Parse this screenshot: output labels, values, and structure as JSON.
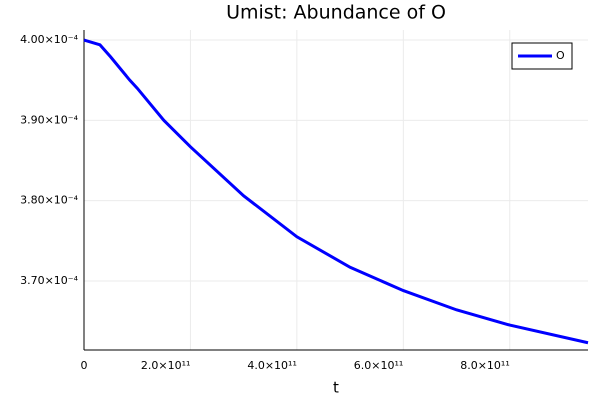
{
  "chart_data": {
    "type": "line",
    "title": "Umist: Abundance of O",
    "xlabel": "t",
    "x": [
      0,
      30000000000,
      50000000000,
      86000000000,
      100000000000,
      150000000000,
      200000000000,
      300000000000,
      400000000000,
      500000000000,
      600000000000,
      700000000000,
      800000000000,
      947000000000
    ],
    "series": [
      {
        "name": "O",
        "color": "#0000ff",
        "values": [
          0.0004,
          0.0003994,
          0.0003979,
          0.000395,
          0.000394,
          0.00039,
          0.0003867,
          0.0003806,
          0.0003755,
          0.0003717,
          0.0003688,
          0.0003664,
          0.0003645,
          0.0003623
        ]
      }
    ],
    "xlim": [
      0,
      947000000000
    ],
    "ylim": [
      0.0003614,
      0.00040125
    ],
    "xticks": [
      0,
      {
        "value": 200000000000,
        "label": "2.0×10¹¹"
      },
      {
        "value": 400000000000,
        "label": "4.0×10¹¹"
      },
      {
        "value": 600000000000,
        "label": "6.0×10¹¹"
      },
      {
        "value": 800000000000,
        "label": "8.0×10¹¹"
      }
    ],
    "yticks": [
      {
        "value": 0.00037,
        "label": "3.70×10⁻⁴"
      },
      {
        "value": 0.00038,
        "label": "3.80×10⁻⁴"
      },
      {
        "value": 0.00039,
        "label": "3.90×10⁻⁴"
      },
      {
        "value": 0.0004,
        "label": "4.00×10⁻⁴"
      }
    ],
    "grid": true,
    "legend": "top-right"
  }
}
